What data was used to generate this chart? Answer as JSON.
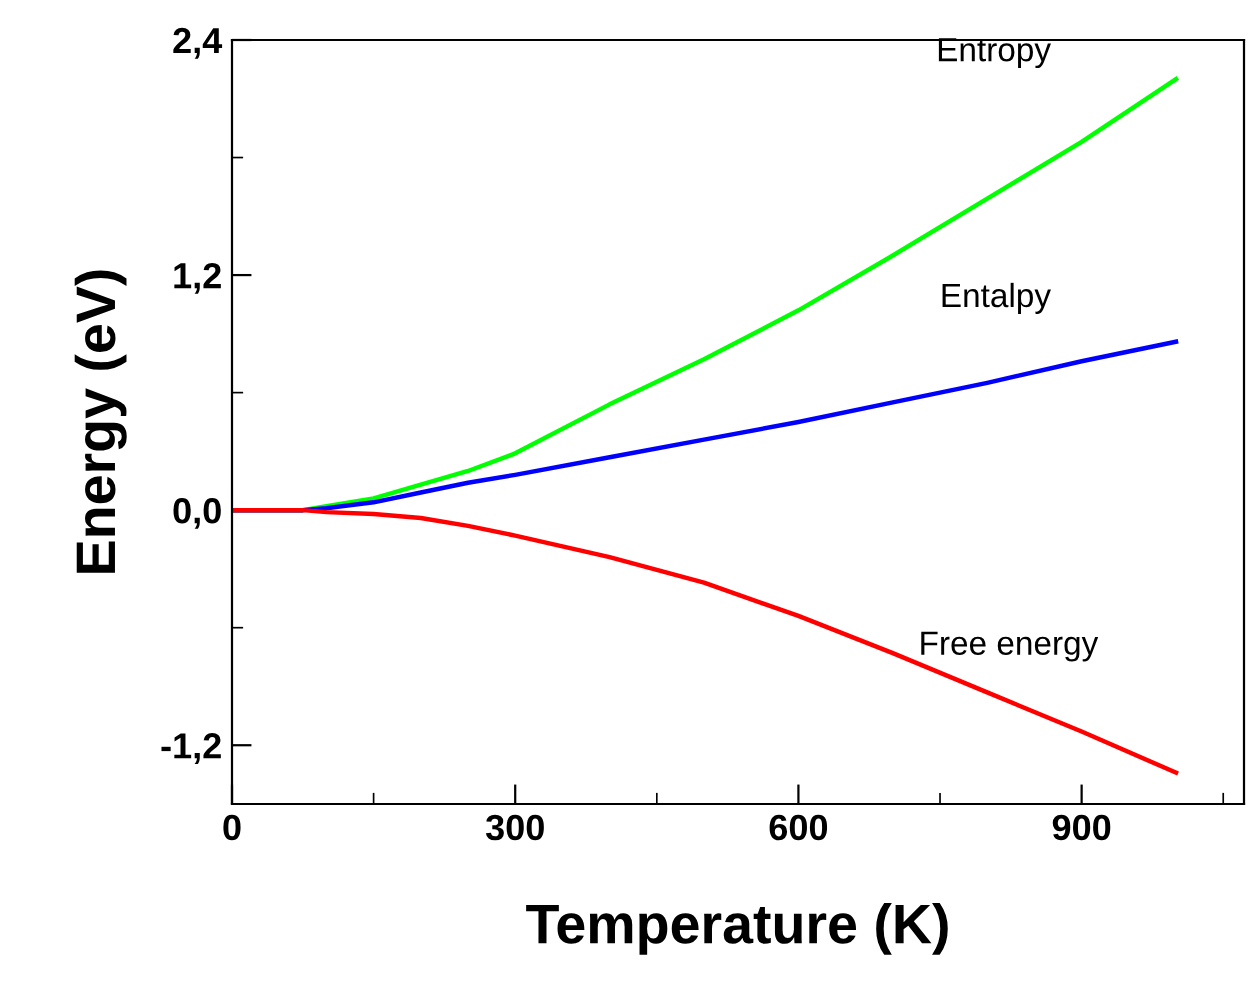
{
  "chart_data": {
    "type": "line",
    "xlabel": "Temperature (K)",
    "ylabel": "Energy (eV)",
    "x": [
      0,
      75,
      100,
      150,
      200,
      250,
      300,
      400,
      500,
      600,
      700,
      800,
      900,
      1000
    ],
    "series": [
      {
        "name": "Entropy",
        "color": "#00ff00",
        "values": [
          0,
          0,
          0.02,
          0.06,
          0.13,
          0.2,
          0.29,
          0.54,
          0.77,
          1.02,
          1.3,
          1.59,
          1.88,
          2.2
        ]
      },
      {
        "name": "Entalpy",
        "color": "#0000ff",
        "values": [
          0,
          0,
          0.01,
          0.04,
          0.09,
          0.14,
          0.18,
          0.27,
          0.36,
          0.45,
          0.55,
          0.65,
          0.76,
          0.86
        ]
      },
      {
        "name": "Free energy",
        "color": "#ff0000",
        "values": [
          0,
          0,
          -0.01,
          -0.02,
          -0.04,
          -0.08,
          -0.13,
          -0.24,
          -0.37,
          -0.54,
          -0.73,
          -0.93,
          -1.13,
          -1.34
        ]
      }
    ],
    "xlim": [
      0,
      1072
    ],
    "ylim": [
      -1.5,
      2.4
    ],
    "xticks": [
      0,
      {
        "value": 150,
        "label": null
      },
      300,
      {
        "value": 450,
        "label": null
      },
      600,
      {
        "value": 750,
        "label": null
      },
      900,
      {
        "value": 1050,
        "label": null
      }
    ],
    "yticks": [
      {
        "value": -1.2,
        "label": "-1,2"
      },
      {
        "value": -0.6,
        "label": null
      },
      {
        "value": 0,
        "label": "0,0"
      },
      {
        "value": 0.6,
        "label": null
      },
      {
        "value": 1.2,
        "label": "1,2"
      },
      {
        "value": 1.8,
        "label": null
      },
      {
        "value": 2.4,
        "label": "2,4"
      }
    ],
    "grid": false,
    "legend": false,
    "marker": "none",
    "line_style": "solid"
  }
}
